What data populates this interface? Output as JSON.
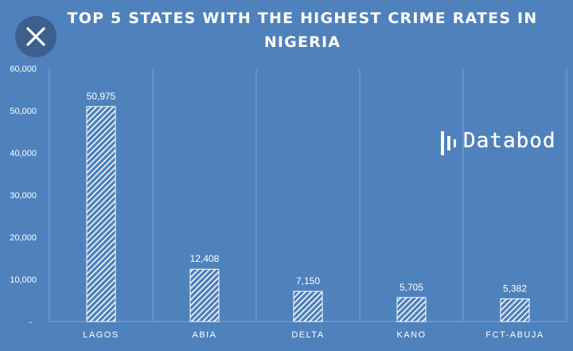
{
  "chart_data": {
    "type": "bar",
    "title_lines": [
      "TOP 5 STATES WITH THE HIGHEST CRIME RATES IN",
      "NIGERIA"
    ],
    "categories": [
      "LAGOS",
      "ABIA",
      "DELTA",
      "KANO",
      "FCT-ABUJA"
    ],
    "values": [
      50975,
      12408,
      7150,
      5705,
      5382
    ],
    "value_labels": [
      "50,975",
      "12,408",
      "7,150",
      "5,705",
      "5,382"
    ],
    "y_ticks": [
      "-",
      "10,000",
      "20,000",
      "30,000",
      "40,000",
      "50,000",
      "60,000"
    ],
    "ylim": [
      0,
      60000
    ],
    "grid": "vertical-separators",
    "bar_fill": "diagonal-hatch",
    "colors": {
      "background": "#4f81bd",
      "bar": "#ffffff",
      "grid": "#7ea3d4"
    }
  },
  "brand": {
    "text": "Databod"
  },
  "controls": {
    "close_icon": "close-icon"
  }
}
